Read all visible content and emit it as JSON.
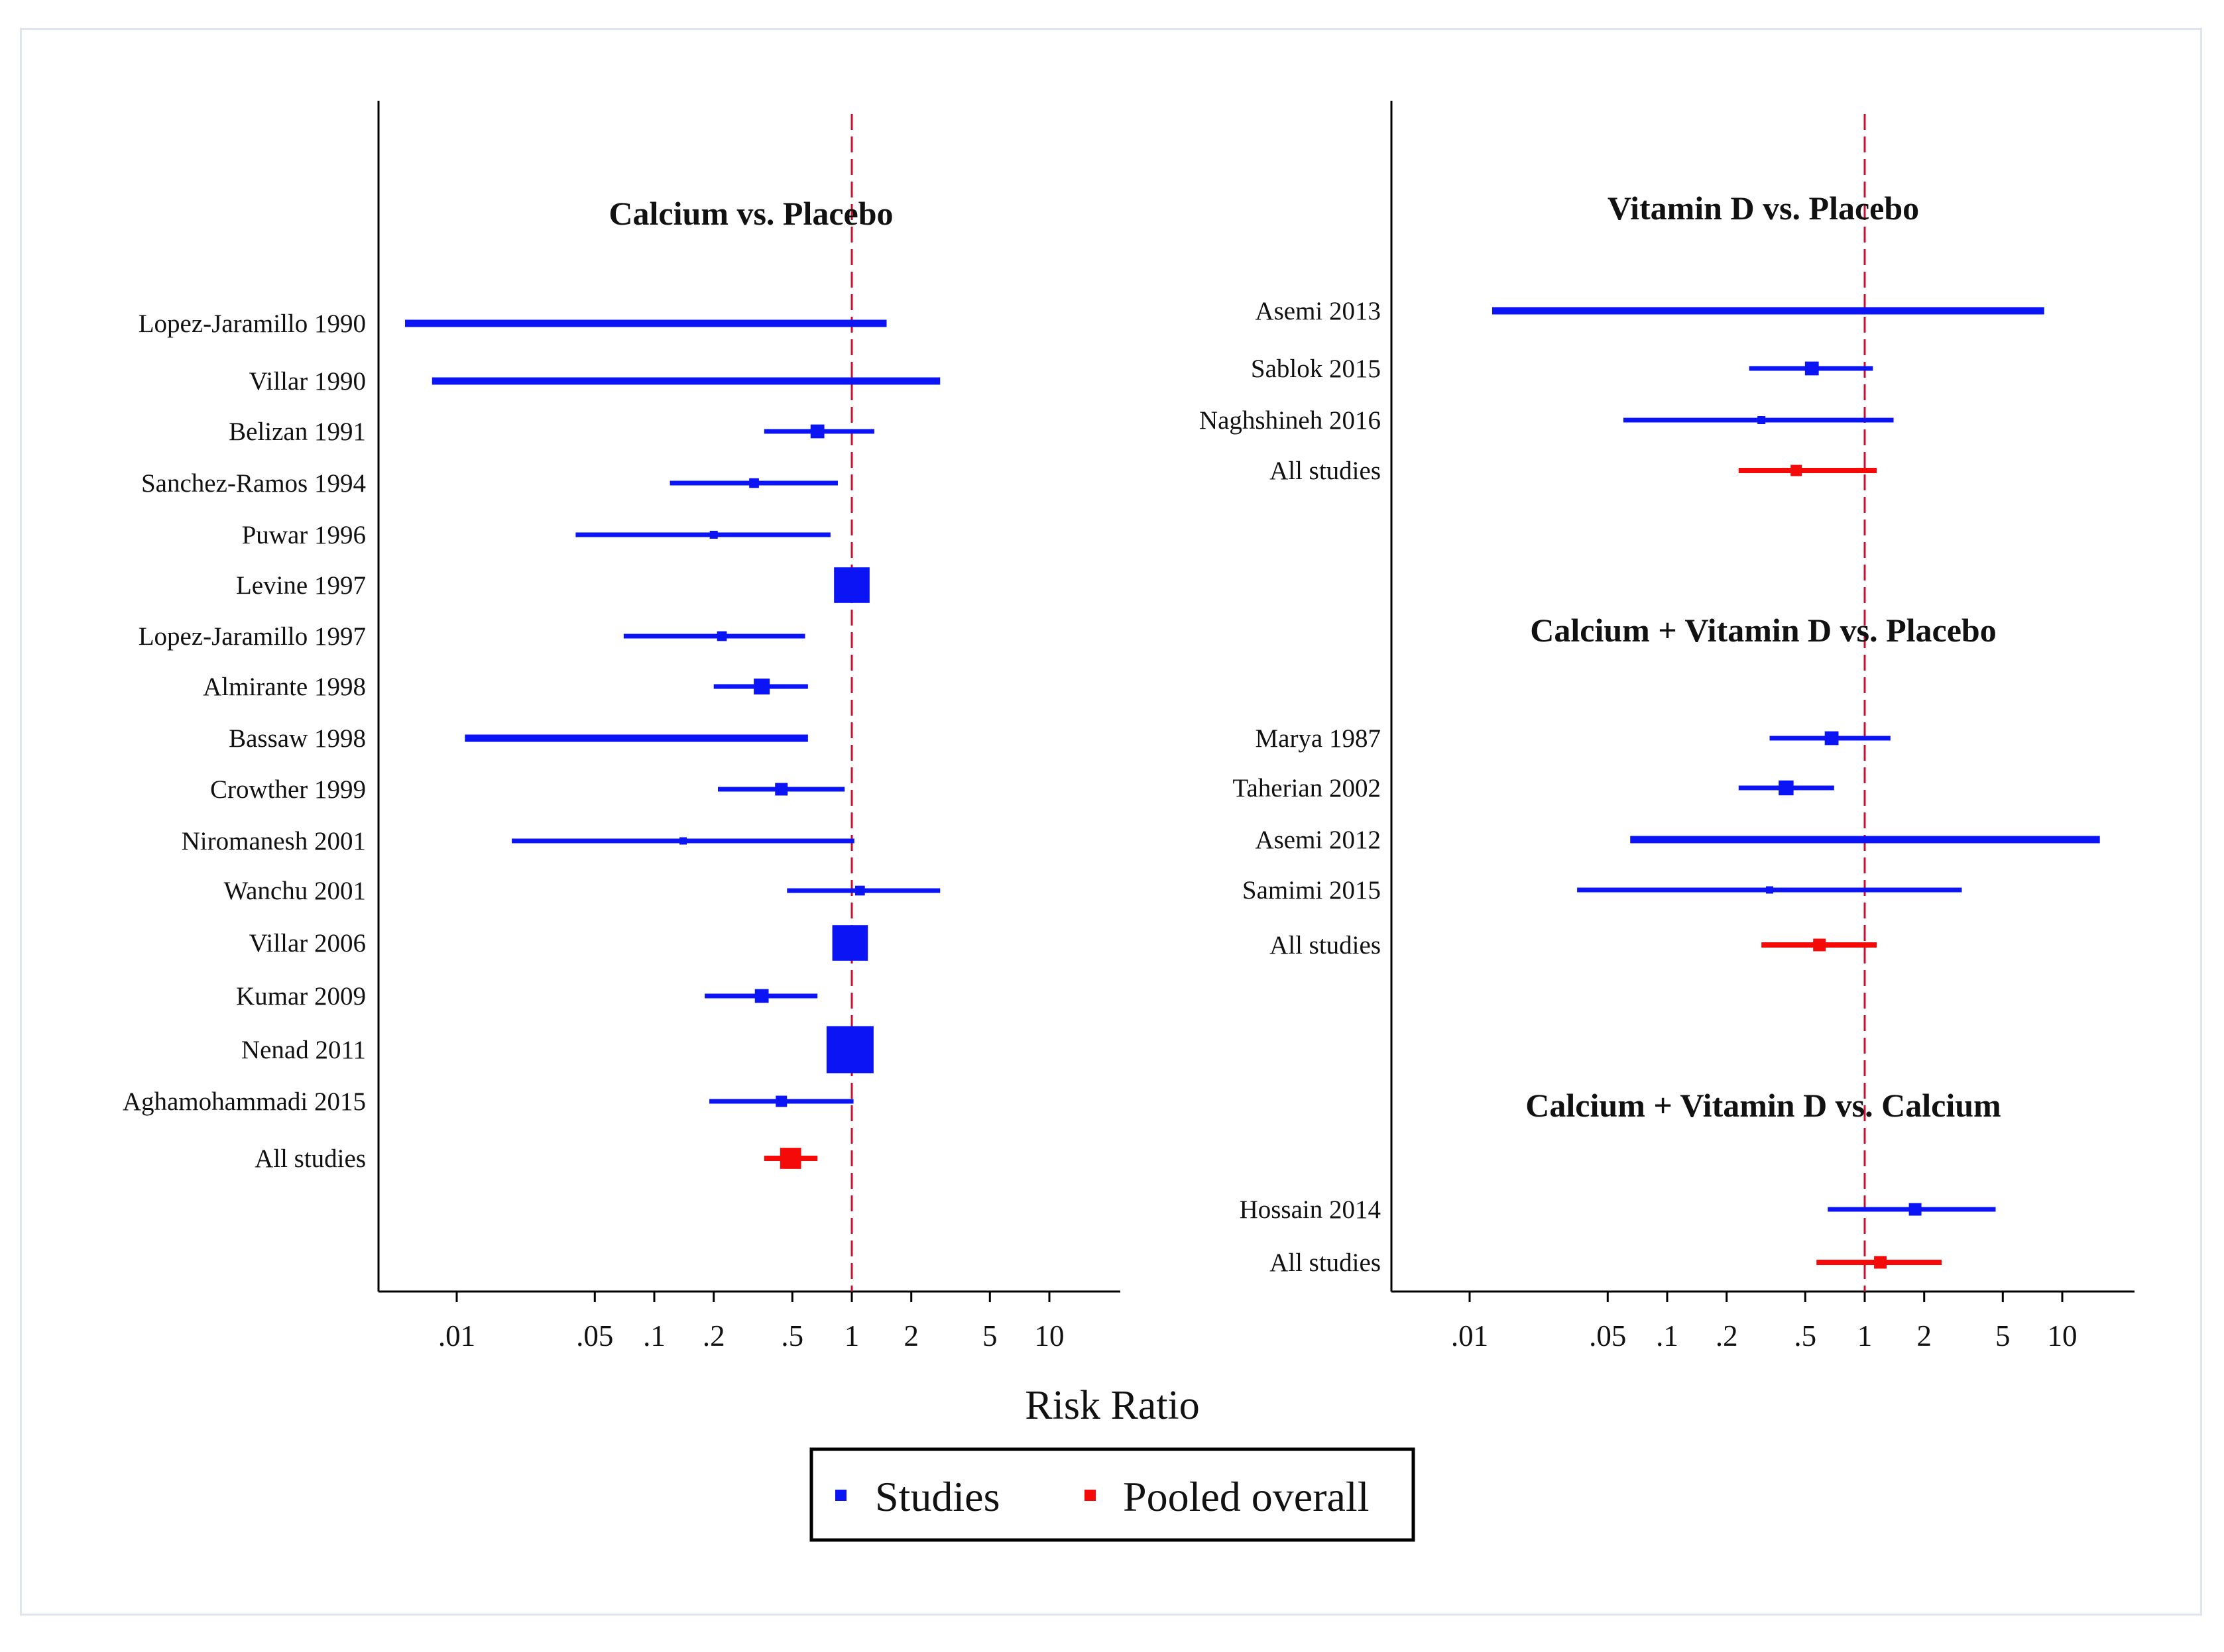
{
  "colors": {
    "studies": "#0a14f5",
    "pooled": "#f50a0a",
    "reference_line": "#c8102e",
    "axis": "#000000",
    "frame": "#dde6ee"
  },
  "axis": {
    "title": "Risk Ratio",
    "scale": "log",
    "xlim": [
      0.004,
      20
    ],
    "ticks": [
      {
        "value": 0.01,
        "label": ".01"
      },
      {
        "value": 0.05,
        "label": ".05"
      },
      {
        "value": 0.1,
        "label": ".1"
      },
      {
        "value": 0.2,
        "label": ".2"
      },
      {
        "value": 0.5,
        "label": ".5"
      },
      {
        "value": 1,
        "label": "1"
      },
      {
        "value": 2,
        "label": "2"
      },
      {
        "value": 5,
        "label": "5"
      },
      {
        "value": 10,
        "label": "10"
      }
    ],
    "reference_value": 1
  },
  "legend": {
    "studies_label": "Studies",
    "pooled_label": "Pooled overall"
  },
  "chart_data": [
    {
      "type": "forest",
      "panel": "left",
      "groups": [
        {
          "title": "Calcium vs. Placebo",
          "rows": [
            {
              "label": "Lopez-Jaramillo 1990",
              "est": 0.09,
              "low": 0.005,
              "high": 1.5,
              "weight": 0.3,
              "kind": "study"
            },
            {
              "label": "Villar 1990",
              "est": 1.0,
              "low": 0.0075,
              "high": 2.8,
              "weight": 0.3,
              "kind": "study"
            },
            {
              "label": "Belizan 1991",
              "est": 0.67,
              "low": 0.36,
              "high": 1.3,
              "weight": 3,
              "kind": "study"
            },
            {
              "label": "Sanchez-Ramos 1994",
              "est": 0.32,
              "low": 0.12,
              "high": 0.85,
              "weight": 1.5,
              "kind": "study"
            },
            {
              "label": "Puwar 1996",
              "est": 0.2,
              "low": 0.04,
              "high": 0.78,
              "weight": 1,
              "kind": "study"
            },
            {
              "label": "Levine 1997",
              "est": 1.0,
              "low": 0.85,
              "high": 1.17,
              "weight": 20,
              "kind": "study"
            },
            {
              "label": "Lopez-Jaramillo 1997",
              "est": 0.22,
              "low": 0.07,
              "high": 0.58,
              "weight": 1.5,
              "kind": "study"
            },
            {
              "label": "Almirante 1998",
              "est": 0.35,
              "low": 0.2,
              "high": 0.6,
              "weight": 4,
              "kind": "study"
            },
            {
              "label": "Bassaw 1998",
              "est": 0.08,
              "low": 0.011,
              "high": 0.6,
              "weight": 0.3,
              "kind": "study"
            },
            {
              "label": "Crowther 1999",
              "est": 0.44,
              "low": 0.21,
              "high": 0.92,
              "weight": 2.5,
              "kind": "study"
            },
            {
              "label": "Niromanesh 2001",
              "est": 0.14,
              "low": 0.019,
              "high": 1.03,
              "weight": 0.7,
              "kind": "study"
            },
            {
              "label": "Wanchu 2001",
              "est": 1.1,
              "low": 0.47,
              "high": 2.8,
              "weight": 1.5,
              "kind": "study"
            },
            {
              "label": "Villar 2006",
              "est": 0.98,
              "low": 0.85,
              "high": 1.13,
              "weight": 20,
              "kind": "study"
            },
            {
              "label": "Kumar 2009",
              "est": 0.35,
              "low": 0.18,
              "high": 0.67,
              "weight": 3,
              "kind": "study"
            },
            {
              "label": "Nenad 2011",
              "est": 0.98,
              "low": 0.85,
              "high": 1.13,
              "weight": 35,
              "kind": "study"
            },
            {
              "label": "Aghamohammadi 2015",
              "est": 0.44,
              "low": 0.19,
              "high": 1.02,
              "weight": 2,
              "kind": "study"
            },
            {
              "label": "All studies",
              "est": 0.49,
              "low": 0.36,
              "high": 0.67,
              "weight": 7,
              "kind": "pooled"
            }
          ]
        }
      ]
    },
    {
      "type": "forest",
      "panel": "right",
      "groups": [
        {
          "title": "Vitamin D vs. Placebo",
          "rows": [
            {
              "label": "Asemi 2013",
              "est": 0.33,
              "low": 0.013,
              "high": 8.1,
              "weight": 0.3,
              "kind": "study"
            },
            {
              "label": "Sablok 2015",
              "est": 0.54,
              "low": 0.26,
              "high": 1.1,
              "weight": 3,
              "kind": "study"
            },
            {
              "label": "Naghshineh 2016",
              "est": 0.3,
              "low": 0.06,
              "high": 1.4,
              "weight": 1,
              "kind": "study"
            },
            {
              "label": "All studies",
              "est": 0.45,
              "low": 0.23,
              "high": 1.15,
              "weight": 2,
              "kind": "pooled"
            }
          ]
        },
        {
          "title": "Calcium + Vitamin D vs. Placebo",
          "rows": [
            {
              "label": "Marya 1987",
              "est": 0.68,
              "low": 0.33,
              "high": 1.35,
              "weight": 3,
              "kind": "study"
            },
            {
              "label": "Taherian 2002",
              "est": 0.4,
              "low": 0.23,
              "high": 0.7,
              "weight": 3.5,
              "kind": "study"
            },
            {
              "label": "Asemi 2012",
              "est": 1.0,
              "low": 0.065,
              "high": 15.5,
              "weight": 0.4,
              "kind": "study"
            },
            {
              "label": "Samimi 2015",
              "est": 0.33,
              "low": 0.035,
              "high": 3.1,
              "weight": 0.8,
              "kind": "study"
            },
            {
              "label": "All studies",
              "est": 0.59,
              "low": 0.3,
              "high": 1.15,
              "weight": 2.5,
              "kind": "pooled"
            }
          ]
        },
        {
          "title": "Calcium + Vitamin D vs. Calcium",
          "rows": [
            {
              "label": "Hossain 2014",
              "est": 1.8,
              "low": 0.65,
              "high": 4.6,
              "weight": 2.5,
              "kind": "study"
            },
            {
              "label": "All studies",
              "est": 1.2,
              "low": 0.57,
              "high": 2.45,
              "weight": 2.5,
              "kind": "pooled"
            }
          ]
        }
      ]
    }
  ]
}
